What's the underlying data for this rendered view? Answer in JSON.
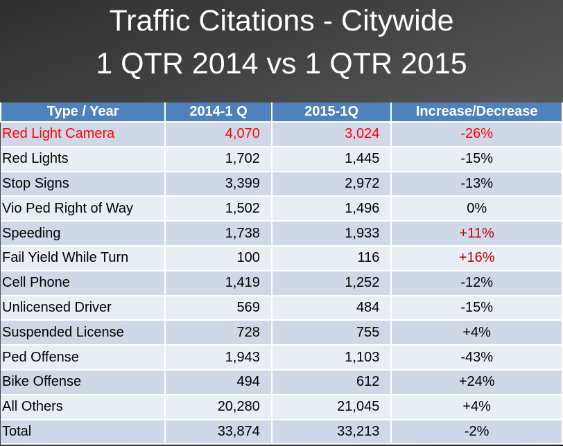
{
  "title": {
    "line1": "Traffic Citations - Citywide",
    "line2": "1 QTR 2014 vs 1 QTR 2015"
  },
  "headers": [
    "Type / Year",
    "2014-1 Q",
    "2015-1Q",
    "Increase/Decrease"
  ],
  "rows": [
    {
      "type": "Red Light Camera",
      "y2014": "4,070",
      "y2015": "3,024",
      "change": "-26%",
      "color": "#ff0000",
      "change_color": "#ff0000"
    },
    {
      "type": "Red Lights",
      "y2014": "1,702",
      "y2015": "1,445",
      "change": "-15%"
    },
    {
      "type": "Stop Signs",
      "y2014": "3,399",
      "y2015": "2,972",
      "change": "-13%"
    },
    {
      "type": "Vio Ped Right of Way",
      "y2014": "1,502",
      "y2015": "1,496",
      "change": "0%"
    },
    {
      "type": "Speeding",
      "y2014": "1,738",
      "y2015": "1,933",
      "change": "+11%",
      "change_color": "#c00000"
    },
    {
      "type": "Fail Yield While Turn",
      "y2014": "100",
      "y2015": "116",
      "change": "+16%",
      "change_color": "#c00000"
    },
    {
      "type": "Cell Phone",
      "y2014": "1,419",
      "y2015": "1,252",
      "change": "-12%"
    },
    {
      "type": "Unlicensed Driver",
      "y2014": "569",
      "y2015": "484",
      "change": "-15%"
    },
    {
      "type": "Suspended License",
      "y2014": "728",
      "y2015": "755",
      "change": "+4%"
    },
    {
      "type": "Ped Offense",
      "y2014": "1,943",
      "y2015": "1,103",
      "change": "-43%"
    },
    {
      "type": "Bike Offense",
      "y2014": "494",
      "y2015": "612",
      "change": "+24%"
    },
    {
      "type": "All Others",
      "y2014": "20,280",
      "y2015": "21,045",
      "change": "+4%"
    },
    {
      "type": "Total",
      "y2014": "33,874",
      "y2015": "33,213",
      "change": "-2%"
    }
  ]
}
